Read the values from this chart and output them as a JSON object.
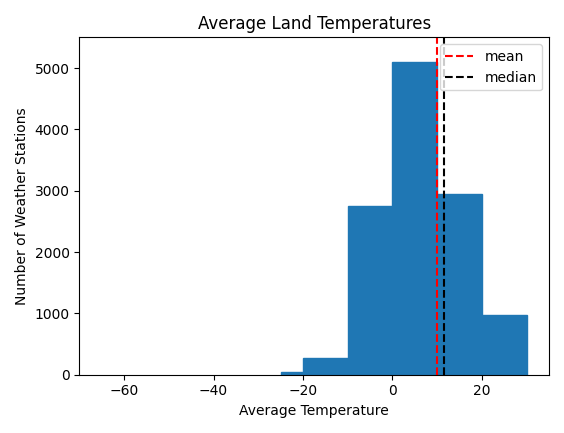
{
  "title": "Average Land Temperatures",
  "xlabel": "Average Temperature",
  "ylabel": "Number of Weather Stations",
  "bar_color": "#1f77b4",
  "bin_edges": [
    -25,
    -20,
    -10,
    0,
    10,
    20,
    30
  ],
  "bar_heights": [
    50,
    280,
    2750,
    5100,
    2950,
    980
  ],
  "mean": 10.0,
  "median": 11.5,
  "mean_color": "red",
  "median_color": "black",
  "mean_linestyle": "--",
  "median_linestyle": "--",
  "xlim": [
    -70,
    35
  ],
  "ylim": [
    0,
    5500
  ],
  "xticks": [
    -60,
    -40,
    -20,
    0,
    20
  ],
  "yticks": [
    0,
    1000,
    2000,
    3000,
    4000,
    5000
  ],
  "figsize": [
    5.64,
    4.33
  ],
  "dpi": 100
}
